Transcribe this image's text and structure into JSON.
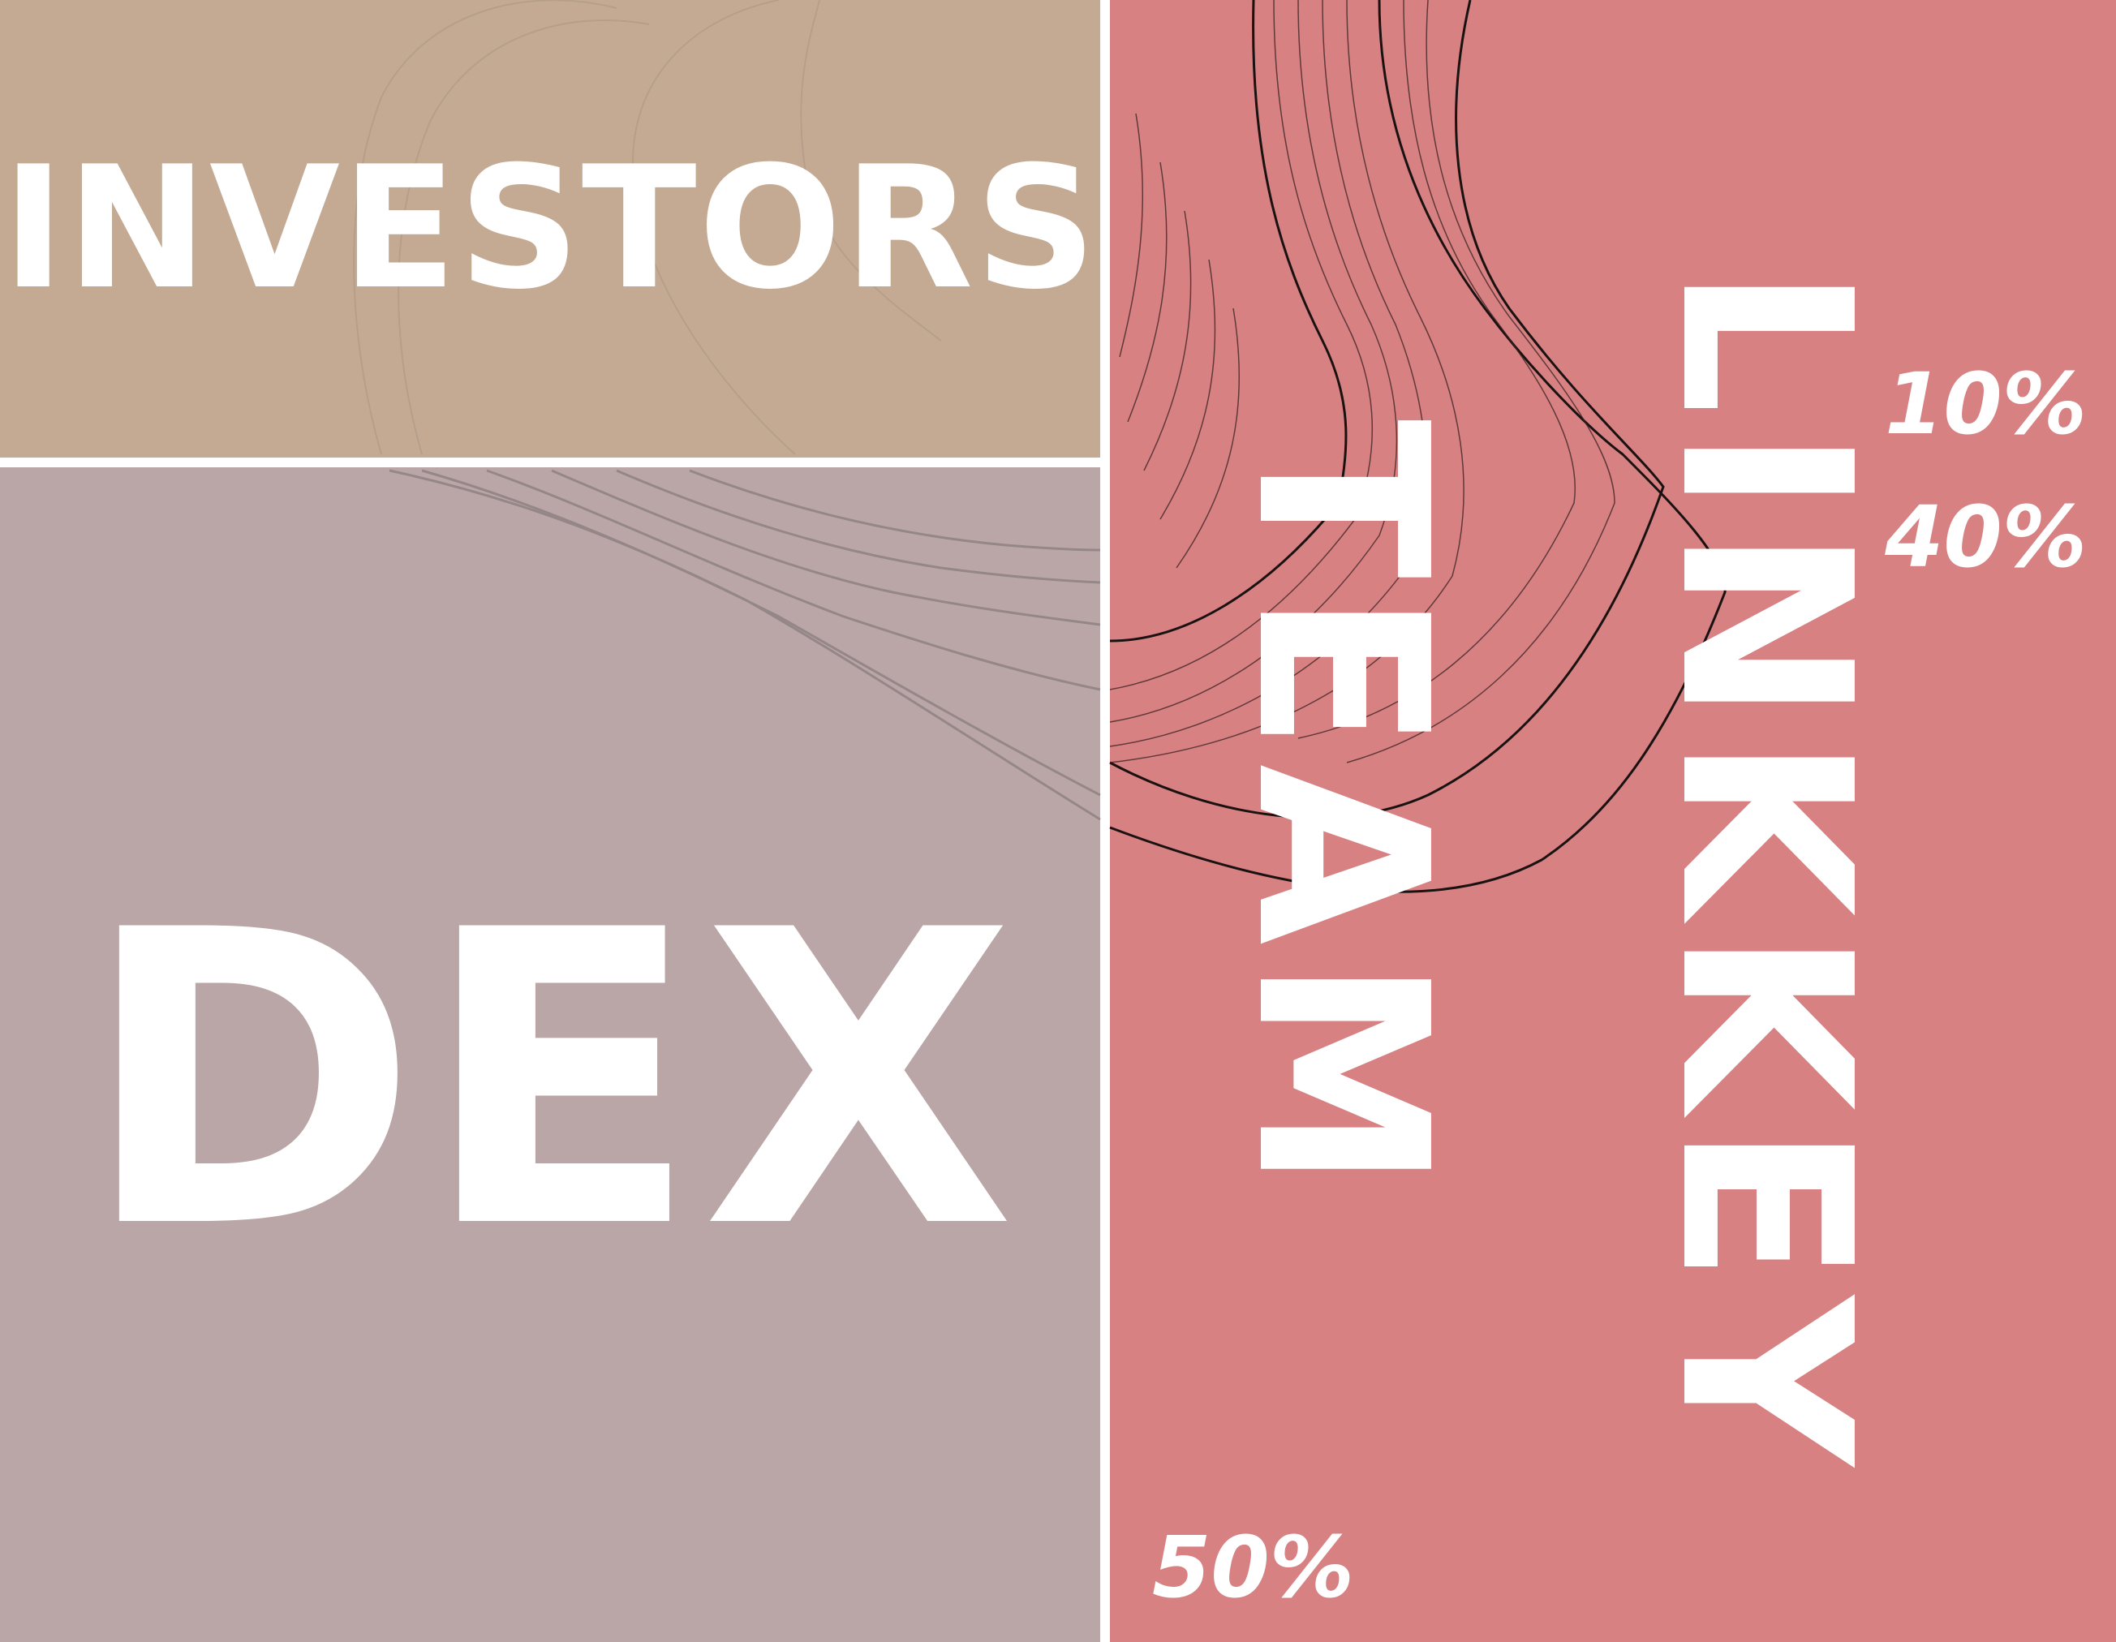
{
  "chart_data": {
    "type": "treemap",
    "title": "",
    "items": [
      {
        "label": "INVESTORS",
        "value": 10,
        "value_label": "10%",
        "color": "#c4aa93"
      },
      {
        "label": "DEX",
        "value": 40,
        "value_label": "40%",
        "color": "#baa6a6"
      },
      {
        "label": "LINKKEY TEAM",
        "label_lines": [
          "LINKKEY",
          "TEAM"
        ],
        "value": 50,
        "value_label": "50%",
        "color": "#d78183"
      }
    ],
    "background": "#ffffff"
  }
}
